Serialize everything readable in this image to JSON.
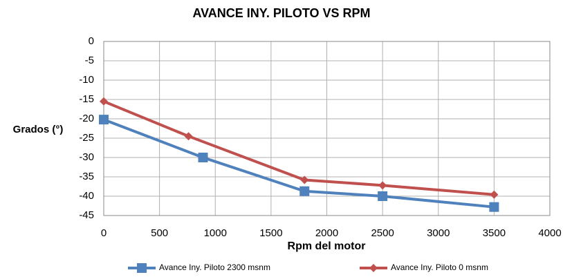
{
  "chart_data": {
    "type": "line",
    "title": "AVANCE INY. PILOTO VS RPM",
    "x_label": "Rpm del motor",
    "y_label": "Grados (°)",
    "xlim": [
      0,
      4000
    ],
    "xticks": [
      0,
      500,
      1000,
      1500,
      2000,
      2500,
      3000,
      3500,
      4000
    ],
    "ylim": [
      -45,
      0
    ],
    "yticks": [
      0,
      -5,
      -10,
      -15,
      -20,
      -25,
      -30,
      -35,
      -40,
      -45
    ],
    "grid": true,
    "legend": "bottom",
    "series": [
      {
        "name": "Avance Iny. Piloto 2300 msnm",
        "color": "#4f81bd",
        "marker": "square",
        "x": [
          0,
          890,
          1800,
          2500,
          3500
        ],
        "values": [
          -20.2,
          -30,
          -38.7,
          -40,
          -42.8
        ]
      },
      {
        "name": "Avance Iny. Piloto 0 msnm",
        "color": "#c0504d",
        "marker": "diamond",
        "x": [
          0,
          760,
          1800,
          2500,
          3500
        ],
        "values": [
          -15.5,
          -24.5,
          -35.8,
          -37.2,
          -39.6
        ]
      }
    ]
  }
}
